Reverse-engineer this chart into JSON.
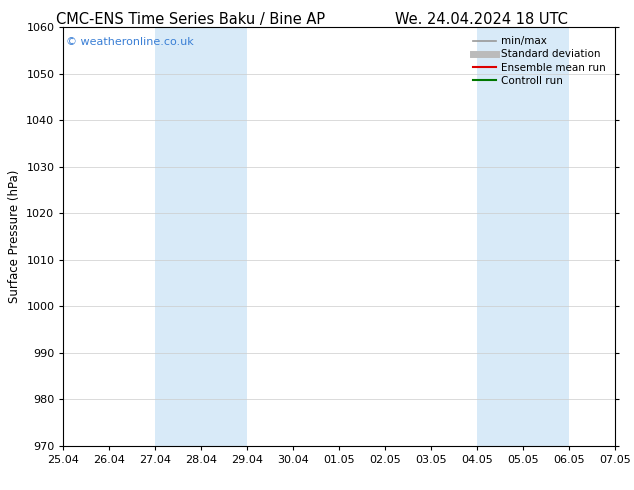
{
  "title_left": "CMC-ENS Time Series Baku / Bine AP",
  "title_right": "We. 24.04.2024 18 UTC",
  "ylabel": "Surface Pressure (hPa)",
  "ylim": [
    970,
    1060
  ],
  "yticks": [
    970,
    980,
    990,
    1000,
    1010,
    1020,
    1030,
    1040,
    1050,
    1060
  ],
  "xtick_labels": [
    "25.04",
    "26.04",
    "27.04",
    "28.04",
    "29.04",
    "30.04",
    "01.05",
    "02.05",
    "03.05",
    "04.05",
    "05.05",
    "06.05",
    "07.05"
  ],
  "xtick_positions": [
    0,
    1,
    2,
    3,
    4,
    5,
    6,
    7,
    8,
    9,
    10,
    11,
    12
  ],
  "xlim": [
    0,
    12
  ],
  "shaded_regions": [
    {
      "x_start": 2,
      "x_end": 4,
      "color": "#d8eaf8"
    },
    {
      "x_start": 9,
      "x_end": 11,
      "color": "#d8eaf8"
    }
  ],
  "copyright_text": "© weatheronline.co.uk",
  "copyright_color": "#3a7fd5",
  "legend_entries": [
    {
      "label": "min/max",
      "color": "#999999",
      "lw": 1.2,
      "style": "solid"
    },
    {
      "label": "Standard deviation",
      "color": "#bbbbbb",
      "lw": 5,
      "style": "solid"
    },
    {
      "label": "Ensemble mean run",
      "color": "#dd0000",
      "lw": 1.5,
      "style": "solid"
    },
    {
      "label": "Controll run",
      "color": "#007700",
      "lw": 1.5,
      "style": "solid"
    }
  ],
  "bg_color": "#ffffff",
  "grid_color": "#cccccc",
  "title_fontsize": 10.5,
  "tick_fontsize": 8,
  "ylabel_fontsize": 8.5,
  "legend_fontsize": 7.5,
  "copyright_fontsize": 8
}
